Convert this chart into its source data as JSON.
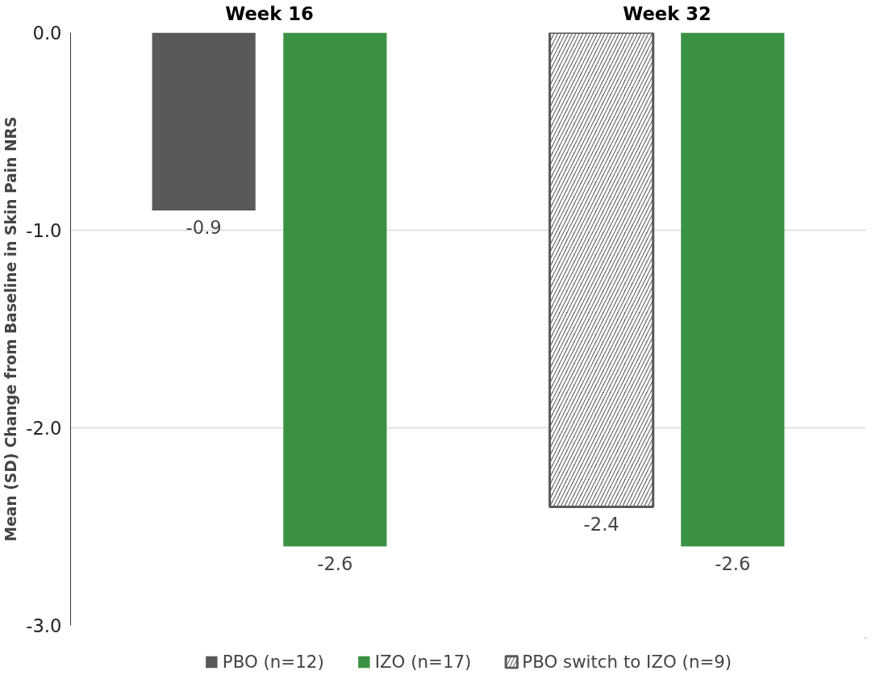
{
  "chart_data": {
    "type": "bar",
    "ylabel": "Mean (SD) Change from Baseline in Skin Pain NRS",
    "categories": [
      "Week 16",
      "Week 32"
    ],
    "series": [
      {
        "name": "PBO (n=12)",
        "color": "#595959",
        "values": [
          -0.9,
          null
        ]
      },
      {
        "name": "IZO (n=17)",
        "color": "#3a9142",
        "values": [
          -2.6,
          -2.6
        ]
      },
      {
        "name": "PBO switch to IZO (n=9)",
        "color": "#595959",
        "values": [
          null,
          -2.4
        ]
      }
    ],
    "ylim": [
      -3,
      0
    ],
    "yticks": [
      {
        "value": 0,
        "label": "0.0"
      },
      {
        "value": -1,
        "label": "-1.0"
      },
      {
        "value": -2,
        "label": "-2.0"
      },
      {
        "value": -3,
        "label": "-3.0"
      }
    ],
    "grid": "y",
    "legend": "bottom",
    "data_labels": true
  }
}
